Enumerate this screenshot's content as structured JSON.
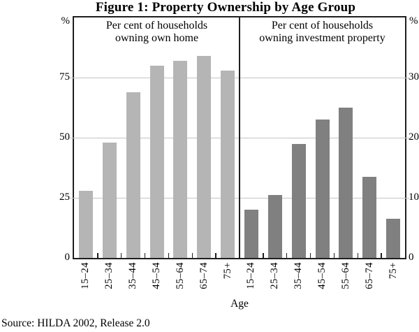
{
  "chart_data": {
    "type": "bar",
    "title": "Figure 1: Property Ownership by Age Group",
    "xlabel": "Age",
    "source": "Source: HILDA 2002, Release 2.0",
    "categories": [
      "15–24",
      "25–34",
      "35–44",
      "45–54",
      "55–64",
      "65–74",
      "75+"
    ],
    "grid": true,
    "legend": "none",
    "panels": [
      {
        "id": "own-home",
        "subtitle": [
          "Per cent of households",
          "owning own home"
        ],
        "axis_side": "left",
        "unit": "%",
        "ylim": [
          0,
          100
        ],
        "yticks": [
          0,
          25,
          50,
          75
        ],
        "bar_color": "#b5b5b5",
        "values": [
          28,
          48,
          69,
          80,
          82,
          84,
          78
        ]
      },
      {
        "id": "investment",
        "subtitle": [
          "Per cent of households",
          "owning investment property"
        ],
        "axis_side": "right",
        "unit": "%",
        "ylim": [
          0,
          40
        ],
        "yticks": [
          0,
          10,
          20,
          30
        ],
        "bar_color": "#808080",
        "values": [
          8,
          10.5,
          19,
          23,
          25,
          13.5,
          6.5
        ]
      }
    ],
    "colors": {
      "own_home_bar": "#b5b5b5",
      "investment_bar": "#808080",
      "gridline": "#c4c4c4",
      "axis": "#1f1f1f",
      "text": "#000000",
      "background": "#ffffff"
    }
  }
}
